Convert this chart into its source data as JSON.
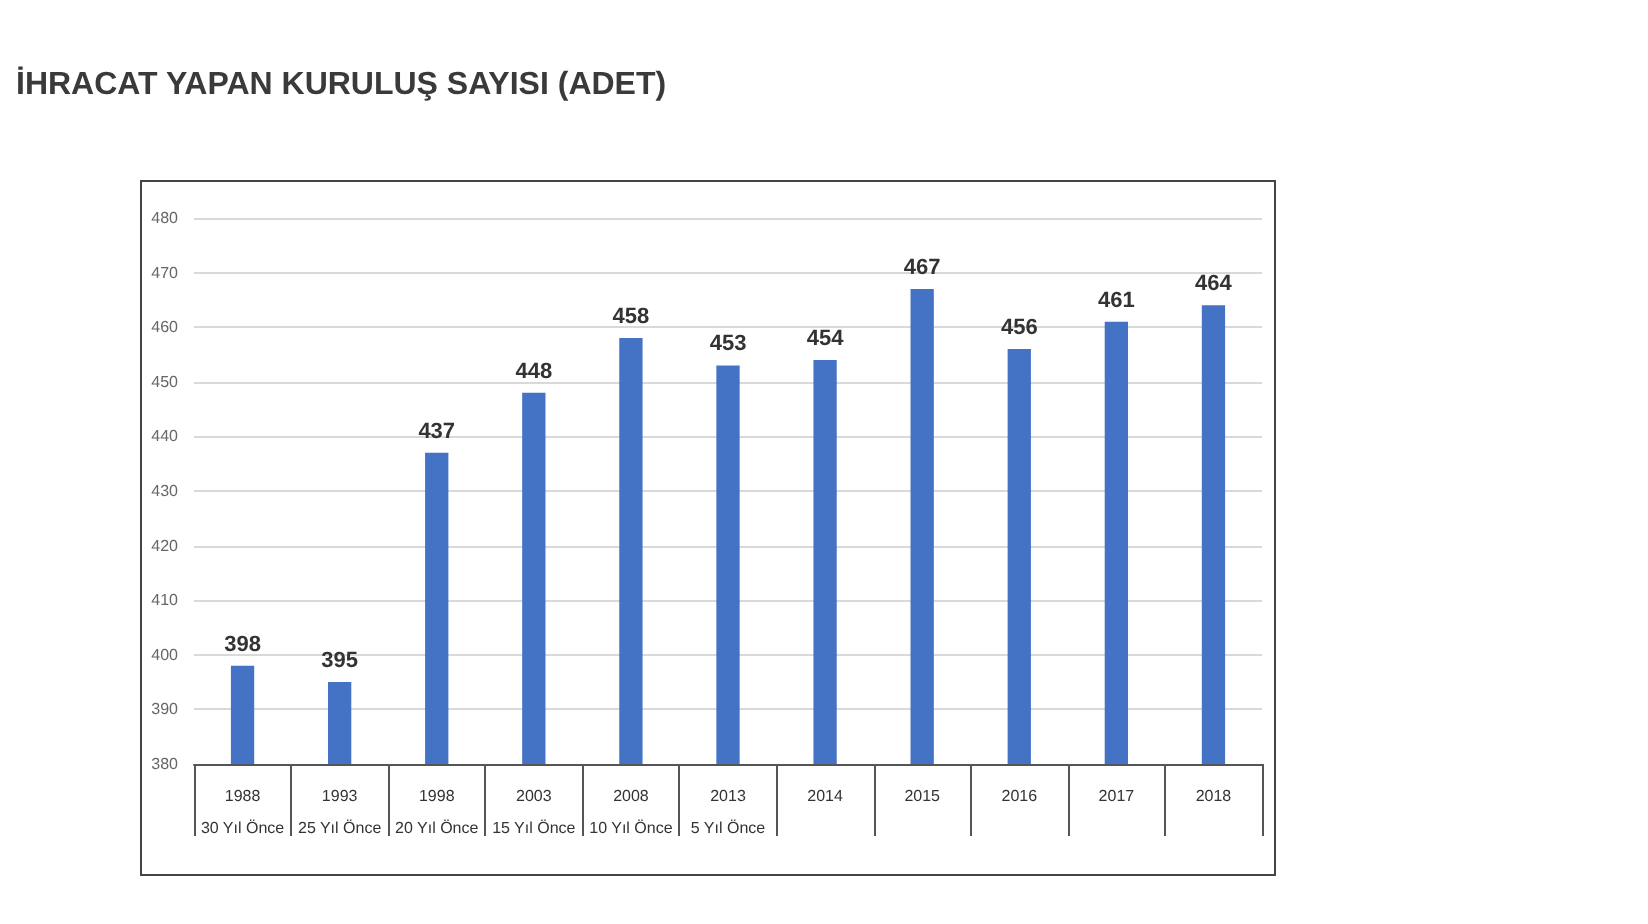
{
  "chart_data": {
    "type": "bar",
    "title": "İHRACAT YAPAN KURULUŞ SAYISI (ADET)",
    "categories": [
      "1988\n30 Yıl Önce",
      "1993\n25 Yıl Önce",
      "1998\n20 Yıl Önce",
      "2003\n15 Yıl Önce",
      "2008\n10 Yıl Önce",
      "2013\n5 Yıl Önce",
      "2014",
      "2015",
      "2016",
      "2017",
      "2018"
    ],
    "values": [
      398,
      395,
      437,
      448,
      458,
      453,
      454,
      467,
      456,
      461,
      464
    ],
    "color": "#4472c4",
    "ylim": [
      380,
      480
    ],
    "yticks": [
      380,
      390,
      400,
      410,
      420,
      430,
      440,
      450,
      460,
      470,
      480
    ],
    "grid": "y",
    "data_labels": true
  }
}
